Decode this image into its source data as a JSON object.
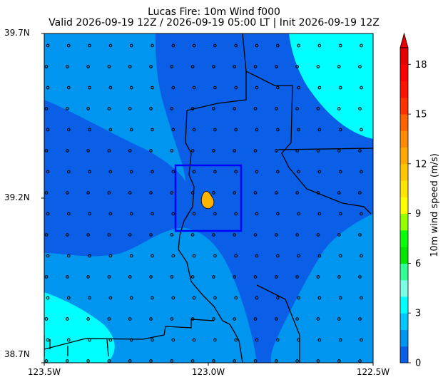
{
  "title": "Lucas Fire: 10m Wind f000",
  "subtitle": "Valid 2026-09-19 12Z / 2026-09-19 05:00 LT | Init 2026-09-19 12Z",
  "x_ticks": [
    "123.5W",
    "123.0W",
    "122.5W"
  ],
  "y_ticks": [
    "39.7N",
    "39.2N",
    "38.7N"
  ],
  "colorbar": {
    "label": "10m wind speed (m/s)",
    "ticks": [
      "0",
      "3",
      "6",
      "9",
      "12",
      "15",
      "18"
    ],
    "colors": [
      "#0a5fe6",
      "#0096f0",
      "#00c8ff",
      "#00ffff",
      "#7dffe6",
      "#32ff96",
      "#00e600",
      "#0aff0a",
      "#96ff00",
      "#ffff00",
      "#ffe600",
      "#ffc800",
      "#ffaa00",
      "#ff8c00",
      "#ff6400",
      "#ff3200",
      "#ff1400",
      "#ff0000",
      "#e60000"
    ],
    "extend_color": "#e60000"
  },
  "contour_colors": {
    "band_0_1_5": "#0a5fe6",
    "band_1_5_3": "#0096f0",
    "band_3_4_5": "#00ffff"
  },
  "bbox_color": "#0000ff",
  "fire_icon_color": "#ffb400"
}
